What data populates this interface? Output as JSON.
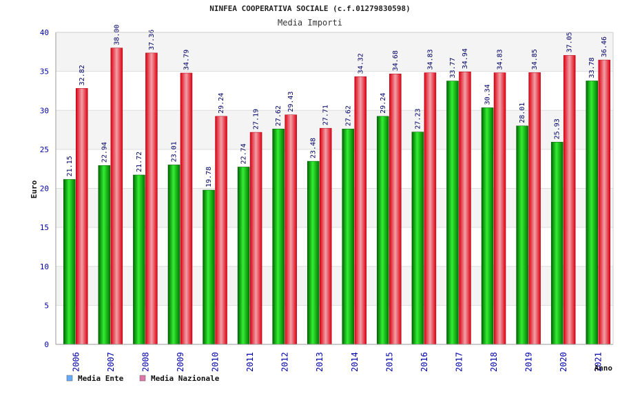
{
  "chart_data": {
    "type": "bar",
    "title": "NINFEA COOPERATIVA SOCIALE (c.f.01279830598)",
    "subtitle": "Media Importi",
    "xlabel": "Anno",
    "ylabel": "Euro",
    "ylim": [
      0,
      40
    ],
    "yticks": [
      0,
      5,
      10,
      15,
      20,
      25,
      30,
      35,
      40
    ],
    "grid": true,
    "legend_position": "bottom-left",
    "categories": [
      "2006",
      "2007",
      "2008",
      "2009",
      "2010",
      "2011",
      "2012",
      "2013",
      "2014",
      "2015",
      "2016",
      "2017",
      "2018",
      "2019",
      "2020",
      "2021"
    ],
    "series": [
      {
        "name": "Media Ente",
        "color": "#00aa00",
        "legend_color": "#66aaff",
        "values": [
          21.15,
          22.94,
          21.72,
          23.01,
          19.78,
          22.74,
          27.62,
          23.48,
          27.62,
          29.24,
          27.23,
          33.77,
          30.34,
          28.01,
          25.93,
          33.78
        ]
      },
      {
        "name": "Media Nazionale",
        "color": "#ee1122",
        "legend_color": "#dd77aa",
        "values": [
          32.82,
          38.0,
          37.36,
          34.79,
          29.24,
          27.19,
          29.43,
          27.71,
          34.32,
          34.68,
          34.83,
          34.94,
          34.83,
          34.85,
          37.05,
          36.46
        ]
      }
    ],
    "value_labels": [
      [
        "21.15",
        "22.94",
        "21.72",
        "23.01",
        "19.78",
        "22.74",
        "27.62",
        "23.48",
        "27.62",
        "29.24",
        "27.23",
        "33.77",
        "30.34",
        "28.01",
        "25.93",
        "33.78"
      ],
      [
        "32.82",
        "38.00",
        "37.36",
        "34.79",
        "29.24",
        "27.19",
        "29.43",
        "27.71",
        "34.32",
        "34.68",
        "34.83",
        "34.94",
        "34.83",
        "34.85",
        "37.05",
        "36.46"
      ]
    ]
  }
}
